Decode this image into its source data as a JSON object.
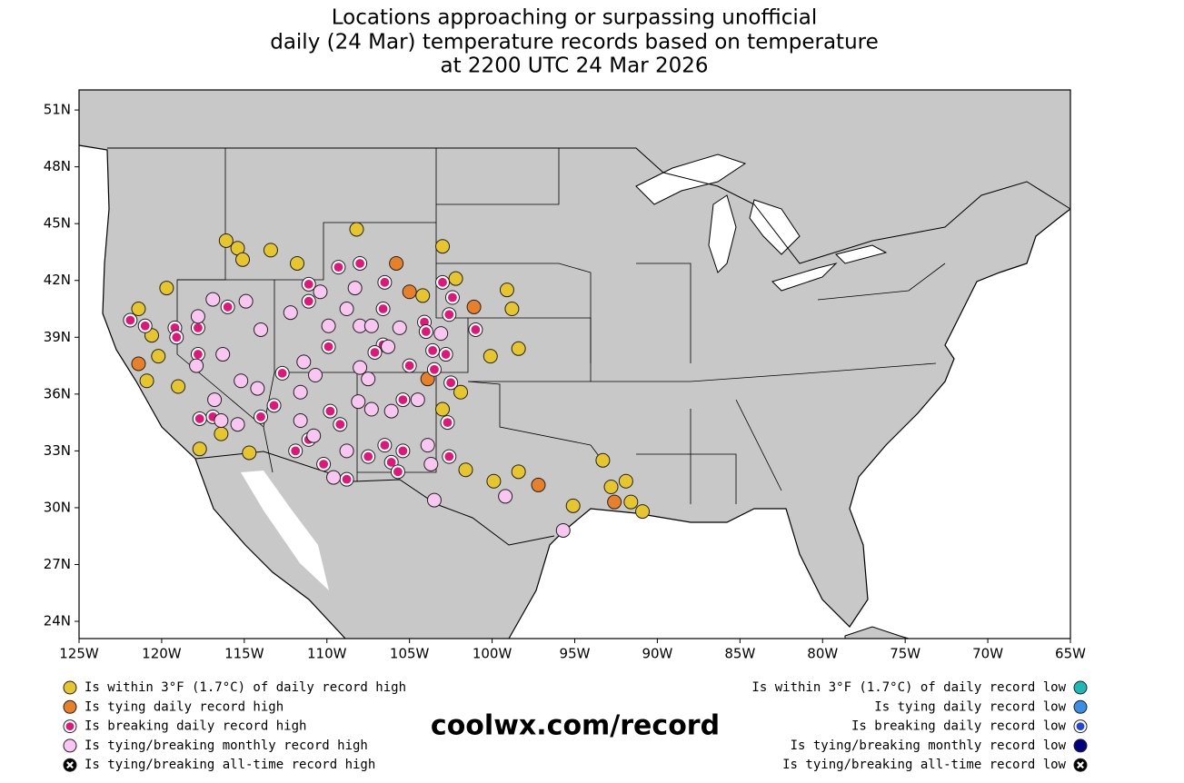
{
  "title": [
    "Locations approaching or surpassing unofficial",
    "daily (24 Mar) temperature records based on temperature",
    "at 2200 UTC 24 Mar 2026"
  ],
  "map": {
    "xlim": [
      -125,
      -65
    ],
    "ylim": [
      23.09,
      52.06
    ],
    "xticks": [
      {
        "value": -125,
        "label": "125W"
      },
      {
        "value": -120,
        "label": "120W"
      },
      {
        "value": -115,
        "label": "115W"
      },
      {
        "value": -110,
        "label": "110W"
      },
      {
        "value": -105,
        "label": "105W"
      },
      {
        "value": -100,
        "label": "100W"
      },
      {
        "value": -95,
        "label": "95W"
      },
      {
        "value": -90,
        "label": "90W"
      },
      {
        "value": -85,
        "label": "85W"
      },
      {
        "value": -80,
        "label": "80W"
      },
      {
        "value": -75,
        "label": "75W"
      },
      {
        "value": -70,
        "label": "70W"
      },
      {
        "value": -65,
        "label": "65W"
      }
    ],
    "yticks": [
      {
        "value": 24,
        "label": "24N"
      },
      {
        "value": 27,
        "label": "27N"
      },
      {
        "value": 30,
        "label": "30N"
      },
      {
        "value": 33,
        "label": "33N"
      },
      {
        "value": 36,
        "label": "36N"
      },
      {
        "value": 39,
        "label": "39N"
      },
      {
        "value": 42,
        "label": "42N"
      },
      {
        "value": 45,
        "label": "45N"
      },
      {
        "value": 48,
        "label": "48N"
      },
      {
        "value": 51,
        "label": "51N"
      }
    ]
  },
  "legend_high": [
    {
      "label": "Is within 3°F (1.7°C) of daily record high",
      "color": "#e6c62c",
      "symbol": "dot",
      "points": [
        [
          -116.1,
          44.1
        ],
        [
          -115.4,
          43.7
        ],
        [
          -115.1,
          43.1
        ],
        [
          -113.4,
          43.6
        ],
        [
          -111.8,
          42.9
        ],
        [
          -108.2,
          44.7
        ],
        [
          -103.0,
          43.8
        ],
        [
          -102.2,
          42.1
        ],
        [
          -104.2,
          41.2
        ],
        [
          -99.1,
          41.5
        ],
        [
          -98.8,
          40.5
        ],
        [
          -98.4,
          38.4
        ],
        [
          -100.1,
          38.0
        ],
        [
          -101.9,
          36.1
        ],
        [
          -103.0,
          35.2
        ],
        [
          -119.7,
          41.6
        ],
        [
          -121.4,
          40.5
        ],
        [
          -120.6,
          39.1
        ],
        [
          -120.2,
          38.0
        ],
        [
          -120.9,
          36.7
        ],
        [
          -119.0,
          36.4
        ],
        [
          -116.4,
          33.9
        ],
        [
          -117.7,
          33.1
        ],
        [
          -114.7,
          32.9
        ],
        [
          -101.6,
          32.0
        ],
        [
          -99.9,
          31.4
        ],
        [
          -98.4,
          31.9
        ],
        [
          -95.1,
          30.1
        ],
        [
          -93.3,
          32.5
        ],
        [
          -92.8,
          31.1
        ],
        [
          -91.9,
          31.4
        ],
        [
          -91.6,
          30.3
        ],
        [
          -90.9,
          29.8
        ]
      ]
    },
    {
      "label": "Is tying daily record high",
      "color": "#e8802a",
      "symbol": "dot",
      "points": [
        [
          -105.8,
          42.9
        ],
        [
          -105.0,
          41.4
        ],
        [
          -101.1,
          40.6
        ],
        [
          -103.9,
          36.8
        ],
        [
          -121.4,
          37.6
        ],
        [
          -97.2,
          31.2
        ],
        [
          -92.6,
          30.3
        ]
      ]
    },
    {
      "label": "Is breaking daily record high",
      "color": "#e0177a",
      "symbol": "ring",
      "points": [
        [
          -121.9,
          39.9
        ],
        [
          -121.0,
          39.6
        ],
        [
          -119.2,
          39.5
        ],
        [
          -117.8,
          39.5
        ],
        [
          -119.1,
          39.0
        ],
        [
          -117.8,
          38.1
        ],
        [
          -116.0,
          40.6
        ],
        [
          -111.1,
          41.8
        ],
        [
          -111.1,
          40.9
        ],
        [
          -109.3,
          42.7
        ],
        [
          -108.0,
          42.9
        ],
        [
          -106.5,
          41.9
        ],
        [
          -103.0,
          41.9
        ],
        [
          -102.4,
          41.1
        ],
        [
          -102.6,
          40.2
        ],
        [
          -104.1,
          39.8
        ],
        [
          -104.0,
          39.3
        ],
        [
          -109.9,
          38.5
        ],
        [
          -106.6,
          40.5
        ],
        [
          -106.6,
          38.6
        ],
        [
          -107.1,
          38.2
        ],
        [
          -105.0,
          37.5
        ],
        [
          -103.6,
          38.3
        ],
        [
          -102.8,
          38.1
        ],
        [
          -103.5,
          37.3
        ],
        [
          -101.0,
          39.4
        ],
        [
          -102.5,
          36.6
        ],
        [
          -112.7,
          37.1
        ],
        [
          -113.2,
          35.4
        ],
        [
          -109.8,
          35.1
        ],
        [
          -109.2,
          34.4
        ],
        [
          -111.1,
          33.6
        ],
        [
          -111.9,
          33.0
        ],
        [
          -110.2,
          32.3
        ],
        [
          -108.8,
          31.5
        ],
        [
          -107.5,
          32.7
        ],
        [
          -106.5,
          33.3
        ],
        [
          -105.4,
          33.0
        ],
        [
          -106.1,
          32.4
        ],
        [
          -105.7,
          31.9
        ],
        [
          -102.7,
          34.5
        ],
        [
          -102.6,
          32.7
        ],
        [
          -105.4,
          35.7
        ],
        [
          -114.0,
          34.8
        ],
        [
          -116.9,
          34.8
        ],
        [
          -117.7,
          34.7
        ]
      ]
    },
    {
      "label": "Is tying/breaking monthly record high",
      "color": "#f8c6f0",
      "symbol": "dot",
      "points": [
        [
          -116.9,
          41.0
        ],
        [
          -114.9,
          40.9
        ],
        [
          -117.8,
          40.1
        ],
        [
          -114.0,
          39.4
        ],
        [
          -116.3,
          38.1
        ],
        [
          -117.9,
          37.5
        ],
        [
          -115.2,
          36.7
        ],
        [
          -114.2,
          36.3
        ],
        [
          -116.8,
          35.7
        ],
        [
          -115.4,
          34.4
        ],
        [
          -116.4,
          34.6
        ],
        [
          -112.2,
          40.3
        ],
        [
          -110.4,
          41.4
        ],
        [
          -108.8,
          40.5
        ],
        [
          -108.3,
          41.6
        ],
        [
          -109.9,
          39.6
        ],
        [
          -111.4,
          37.7
        ],
        [
          -110.7,
          37.0
        ],
        [
          -108.0,
          39.6
        ],
        [
          -107.3,
          39.6
        ],
        [
          -106.3,
          38.5
        ],
        [
          -107.5,
          36.8
        ],
        [
          -108.0,
          37.4
        ],
        [
          -108.1,
          35.6
        ],
        [
          -107.3,
          35.2
        ],
        [
          -106.1,
          35.1
        ],
        [
          -104.5,
          35.7
        ],
        [
          -105.6,
          39.5
        ],
        [
          -103.1,
          39.2
        ],
        [
          -111.6,
          36.1
        ],
        [
          -111.6,
          34.6
        ],
        [
          -110.8,
          33.8
        ],
        [
          -109.6,
          31.6
        ],
        [
          -108.8,
          33.0
        ],
        [
          -103.9,
          33.3
        ],
        [
          -103.7,
          32.3
        ],
        [
          -103.5,
          30.4
        ],
        [
          -99.2,
          30.6
        ],
        [
          -95.7,
          28.8
        ]
      ]
    },
    {
      "label": "Is tying/breaking all-time record high",
      "color": "#000000",
      "symbol": "x",
      "points": []
    }
  ],
  "legend_low": [
    {
      "label": "Is within 3°F (1.7°C) of daily record low",
      "color": "#1fb8b8",
      "symbol": "dot"
    },
    {
      "label": "Is tying daily record low",
      "color": "#3a8ee8",
      "symbol": "dot"
    },
    {
      "label": "Is breaking daily record low",
      "color": "#2244dd",
      "symbol": "ring"
    },
    {
      "label": "Is tying/breaking monthly record low",
      "color": "#000080",
      "symbol": "dot"
    },
    {
      "label": "Is tying/breaking all-time record low",
      "color": "#000000",
      "symbol": "x"
    }
  ],
  "site": "coolwx.com/record"
}
